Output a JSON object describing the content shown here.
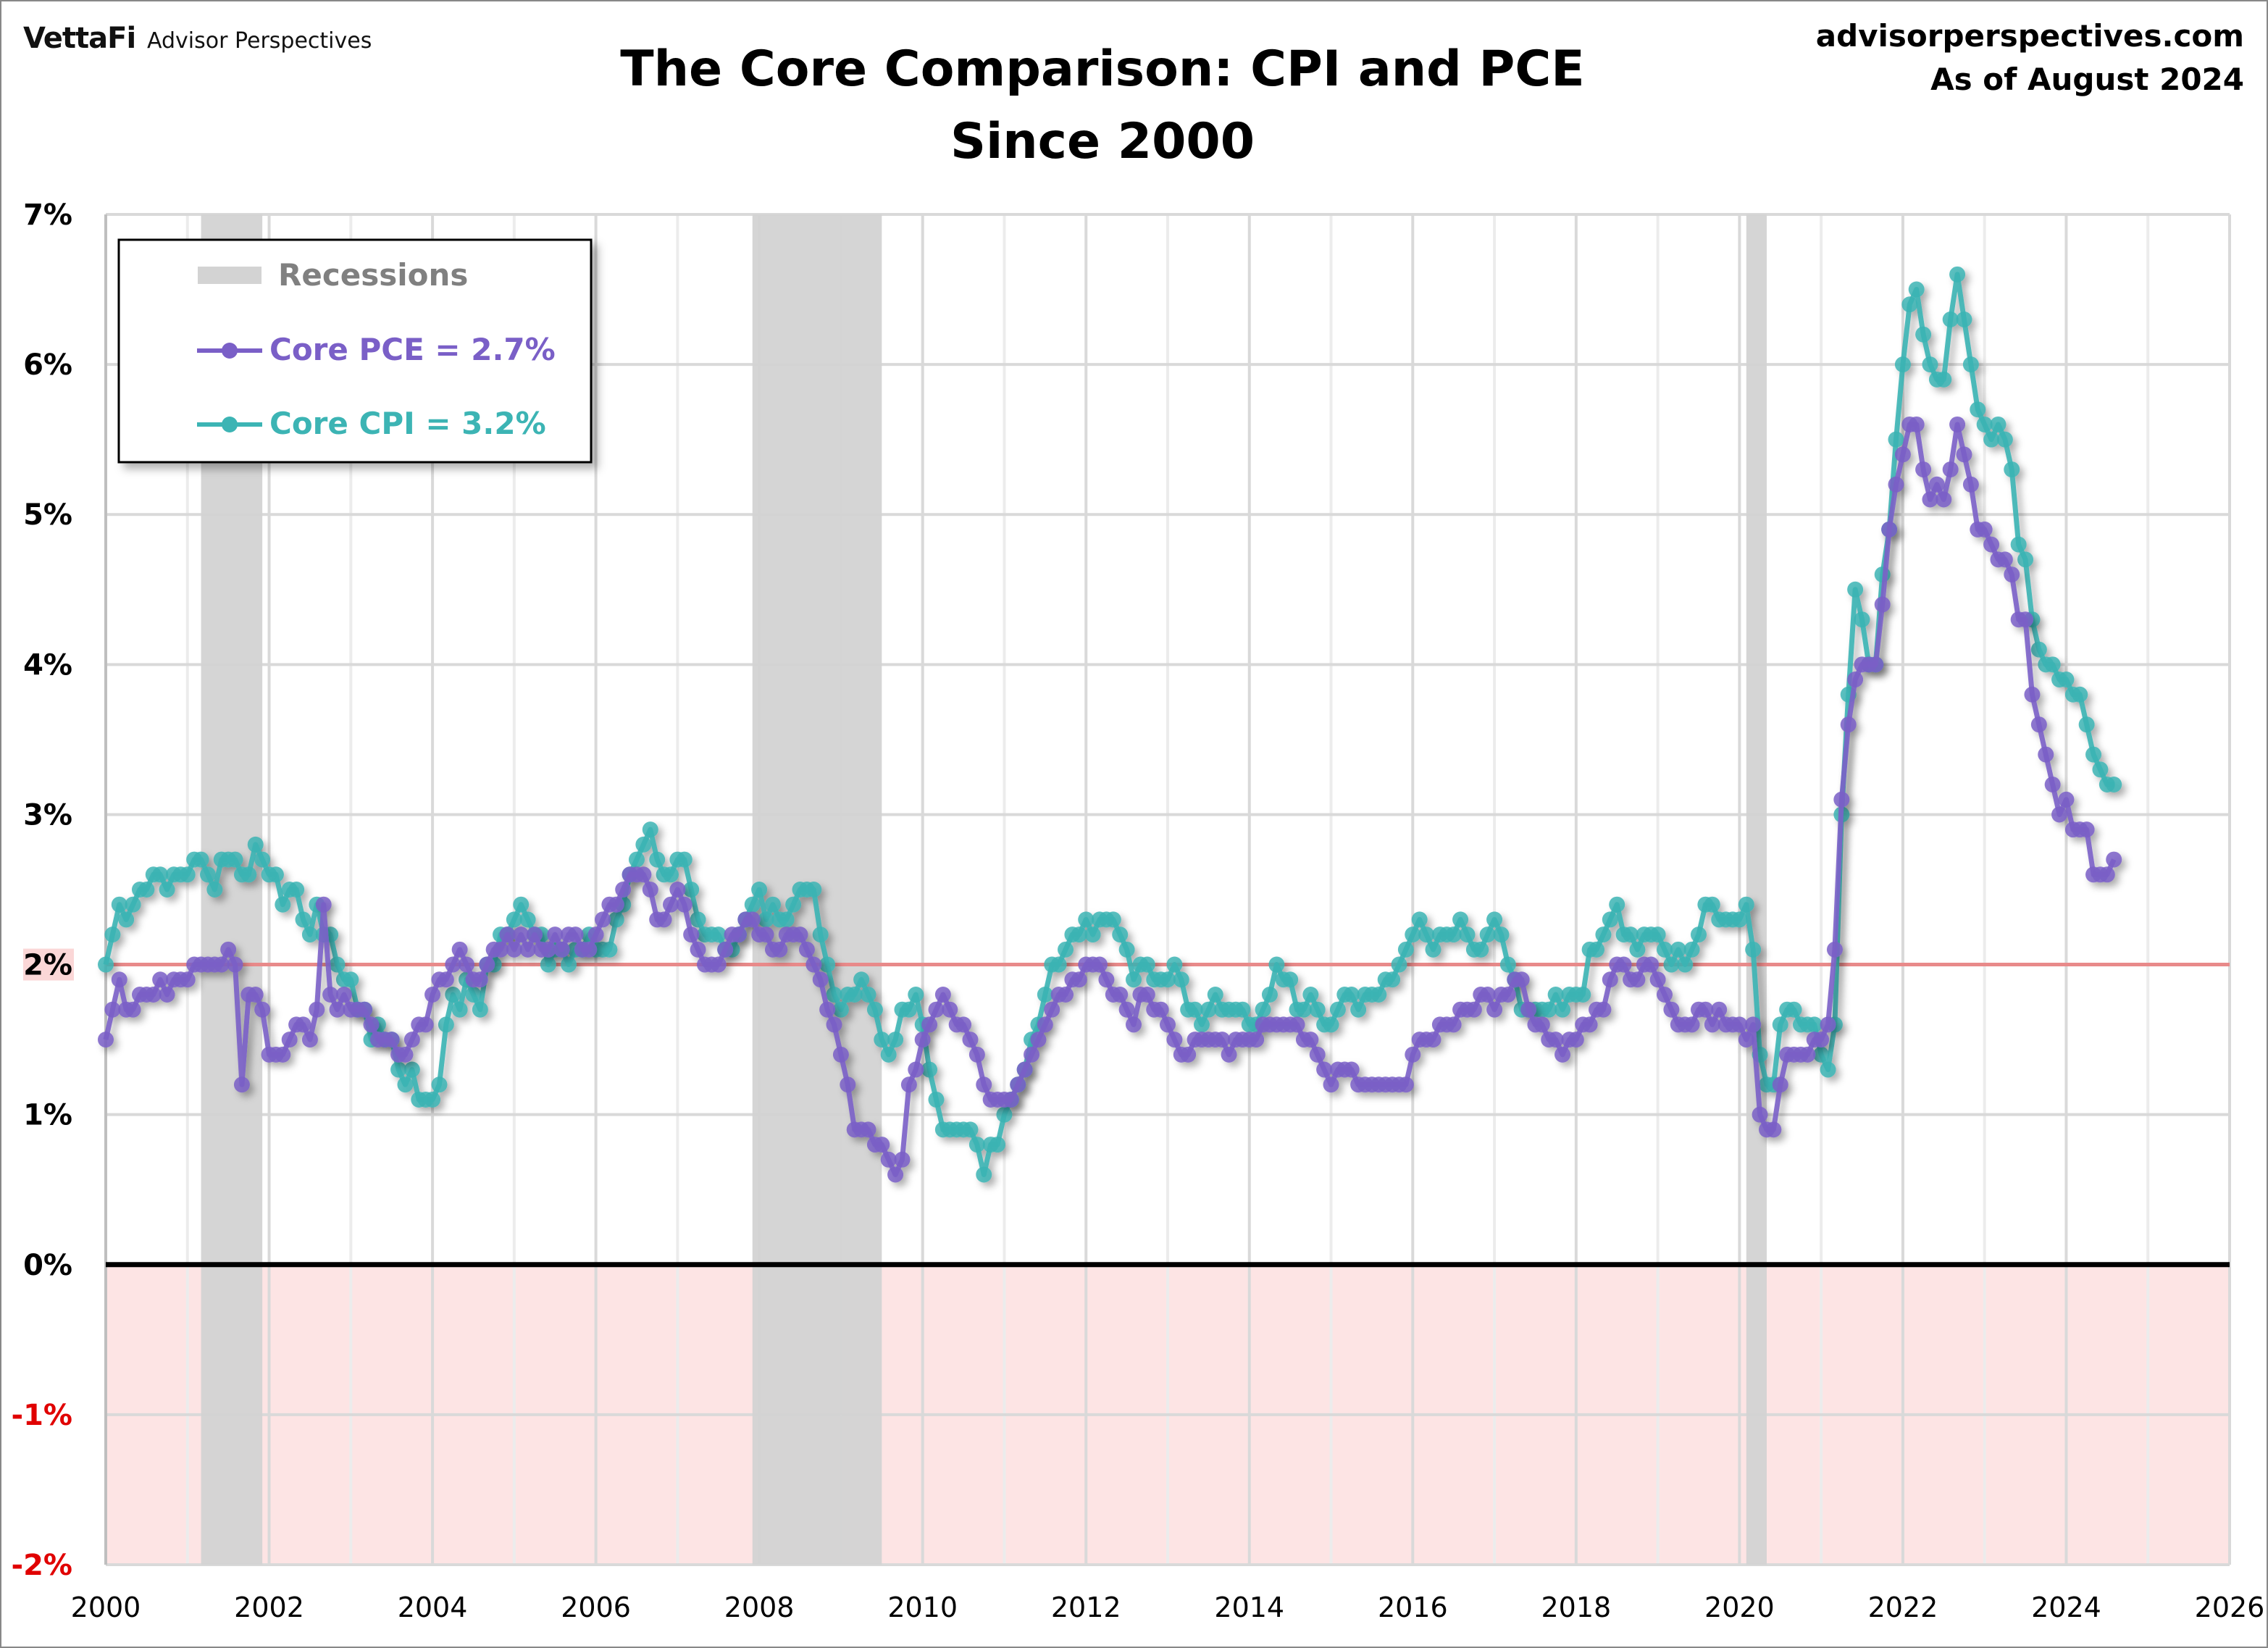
{
  "header": {
    "logo_text": "VettaFi",
    "brand_text": "Advisor Perspectives",
    "site": "advisorperspectives.com",
    "as_of": "As of August 2024"
  },
  "chart_data": {
    "type": "line",
    "title": "The Core Comparison: CPI and PCE",
    "subtitle": "Since 2000",
    "xlabel": "",
    "ylabel": "",
    "xlim": [
      2000,
      2026
    ],
    "ylim": [
      -2,
      7
    ],
    "x_ticks": [
      "2000",
      "2002",
      "2004",
      "2006",
      "2008",
      "2010",
      "2012",
      "2014",
      "2016",
      "2018",
      "2020",
      "2022",
      "2024",
      "2026"
    ],
    "y_ticks": [
      "7%",
      "6%",
      "5%",
      "4%",
      "3%",
      "2%",
      "1%",
      "0%",
      "-1%",
      "-2%"
    ],
    "y_tick_values": [
      7,
      6,
      5,
      4,
      3,
      2,
      1,
      0,
      -1,
      -2
    ],
    "grid": true,
    "legend_placement": "top-left",
    "reference_line": {
      "value": 2,
      "color": "#e88a8a"
    },
    "negative_shading_color": "#fde4e4",
    "recession_color": "#d3d3d3",
    "recessions": [
      {
        "start": "2001-03",
        "end": "2001-11"
      },
      {
        "start": "2007-12",
        "end": "2009-06"
      },
      {
        "start": "2020-02",
        "end": "2020-04"
      }
    ],
    "legend": {
      "recessions_label": "Recessions",
      "pce_label": "Core PCE = 2.7%",
      "cpi_label": "Core CPI =  3.2%"
    },
    "x_start": "2000-01",
    "frequency": "monthly",
    "series": [
      {
        "name": "Core PCE",
        "color": "#7a5fc7",
        "latest": "2.7%",
        "values": [
          1.5,
          1.7,
          1.9,
          1.7,
          1.7,
          1.8,
          1.8,
          1.8,
          1.9,
          1.8,
          1.9,
          1.9,
          1.9,
          2.0,
          2.0,
          2.0,
          2.0,
          2.0,
          2.1,
          2.0,
          1.2,
          1.8,
          1.8,
          1.7,
          1.4,
          1.4,
          1.4,
          1.5,
          1.6,
          1.6,
          1.5,
          1.7,
          2.4,
          1.8,
          1.7,
          1.8,
          1.7,
          1.7,
          1.7,
          1.6,
          1.5,
          1.5,
          1.5,
          1.4,
          1.4,
          1.5,
          1.6,
          1.6,
          1.8,
          1.9,
          1.9,
          2.0,
          2.1,
          2.0,
          1.9,
          1.9,
          2.0,
          2.1,
          2.1,
          2.2,
          2.1,
          2.2,
          2.1,
          2.2,
          2.1,
          2.1,
          2.2,
          2.1,
          2.2,
          2.2,
          2.1,
          2.1,
          2.2,
          2.3,
          2.4,
          2.4,
          2.5,
          2.6,
          2.6,
          2.6,
          2.5,
          2.3,
          2.3,
          2.4,
          2.5,
          2.4,
          2.2,
          2.1,
          2.0,
          2.0,
          2.0,
          2.1,
          2.2,
          2.2,
          2.3,
          2.3,
          2.2,
          2.2,
          2.1,
          2.1,
          2.2,
          2.2,
          2.2,
          2.1,
          2.0,
          1.9,
          1.7,
          1.6,
          1.4,
          1.2,
          0.9,
          0.9,
          0.9,
          0.8,
          0.8,
          0.7,
          0.6,
          0.7,
          1.2,
          1.3,
          1.5,
          1.6,
          1.7,
          1.8,
          1.7,
          1.6,
          1.6,
          1.5,
          1.4,
          1.2,
          1.1,
          1.1,
          1.1,
          1.1,
          1.2,
          1.3,
          1.4,
          1.5,
          1.6,
          1.7,
          1.8,
          1.8,
          1.9,
          1.9,
          2.0,
          2.0,
          2.0,
          1.9,
          1.8,
          1.8,
          1.7,
          1.6,
          1.8,
          1.8,
          1.7,
          1.7,
          1.6,
          1.5,
          1.4,
          1.4,
          1.5,
          1.5,
          1.5,
          1.5,
          1.5,
          1.4,
          1.5,
          1.5,
          1.5,
          1.5,
          1.6,
          1.6,
          1.6,
          1.6,
          1.6,
          1.6,
          1.5,
          1.5,
          1.4,
          1.3,
          1.2,
          1.3,
          1.3,
          1.3,
          1.2,
          1.2,
          1.2,
          1.2,
          1.2,
          1.2,
          1.2,
          1.2,
          1.4,
          1.5,
          1.5,
          1.5,
          1.6,
          1.6,
          1.6,
          1.7,
          1.7,
          1.7,
          1.8,
          1.8,
          1.7,
          1.8,
          1.8,
          1.9,
          1.9,
          1.7,
          1.6,
          1.6,
          1.5,
          1.5,
          1.4,
          1.5,
          1.5,
          1.6,
          1.6,
          1.7,
          1.7,
          1.9,
          2.0,
          2.0,
          1.9,
          1.9,
          2.0,
          2.0,
          1.9,
          1.8,
          1.7,
          1.6,
          1.6,
          1.6,
          1.7,
          1.7,
          1.6,
          1.7,
          1.6,
          1.6,
          1.6,
          1.5,
          1.6,
          1.0,
          0.9,
          0.9,
          1.2,
          1.4,
          1.4,
          1.4,
          1.4,
          1.5,
          1.5,
          1.6,
          2.1,
          3.1,
          3.6,
          3.9,
          4.0,
          4.0,
          4.0,
          4.4,
          4.9,
          5.2,
          5.4,
          5.6,
          5.6,
          5.3,
          5.1,
          5.2,
          5.1,
          5.3,
          5.6,
          5.4,
          5.2,
          4.9,
          4.9,
          4.8,
          4.7,
          4.7,
          4.6,
          4.3,
          4.3,
          3.8,
          3.6,
          3.4,
          3.2,
          3.0,
          3.1,
          2.9,
          2.9,
          2.9,
          2.6,
          2.6,
          2.6,
          2.7
        ]
      },
      {
        "name": "Core CPI",
        "color": "#3cb4b4",
        "latest": "3.2%",
        "values": [
          2.0,
          2.2,
          2.4,
          2.3,
          2.4,
          2.5,
          2.5,
          2.6,
          2.6,
          2.5,
          2.6,
          2.6,
          2.6,
          2.7,
          2.7,
          2.6,
          2.5,
          2.7,
          2.7,
          2.7,
          2.6,
          2.6,
          2.8,
          2.7,
          2.6,
          2.6,
          2.4,
          2.5,
          2.5,
          2.3,
          2.2,
          2.4,
          2.2,
          2.2,
          2.0,
          1.9,
          1.9,
          1.7,
          1.7,
          1.5,
          1.6,
          1.5,
          1.5,
          1.3,
          1.2,
          1.3,
          1.1,
          1.1,
          1.1,
          1.2,
          1.6,
          1.8,
          1.7,
          1.9,
          1.8,
          1.7,
          2.0,
          2.0,
          2.2,
          2.2,
          2.3,
          2.4,
          2.3,
          2.2,
          2.2,
          2.0,
          2.1,
          2.1,
          2.0,
          2.1,
          2.1,
          2.2,
          2.1,
          2.1,
          2.1,
          2.3,
          2.4,
          2.6,
          2.7,
          2.8,
          2.9,
          2.7,
          2.6,
          2.6,
          2.7,
          2.7,
          2.5,
          2.3,
          2.2,
          2.2,
          2.2,
          2.1,
          2.1,
          2.2,
          2.3,
          2.4,
          2.5,
          2.3,
          2.4,
          2.3,
          2.3,
          2.4,
          2.5,
          2.5,
          2.5,
          2.2,
          2.0,
          1.8,
          1.7,
          1.8,
          1.8,
          1.9,
          1.8,
          1.7,
          1.5,
          1.4,
          1.5,
          1.7,
          1.7,
          1.8,
          1.6,
          1.3,
          1.1,
          0.9,
          0.9,
          0.9,
          0.9,
          0.9,
          0.8,
          0.6,
          0.8,
          0.8,
          1.0,
          1.1,
          1.2,
          1.3,
          1.5,
          1.6,
          1.8,
          2.0,
          2.0,
          2.1,
          2.2,
          2.2,
          2.3,
          2.2,
          2.3,
          2.3,
          2.3,
          2.2,
          2.1,
          1.9,
          2.0,
          2.0,
          1.9,
          1.9,
          1.9,
          2.0,
          1.9,
          1.7,
          1.7,
          1.6,
          1.7,
          1.8,
          1.7,
          1.7,
          1.7,
          1.7,
          1.6,
          1.6,
          1.7,
          1.8,
          2.0,
          1.9,
          1.9,
          1.7,
          1.7,
          1.8,
          1.7,
          1.6,
          1.6,
          1.7,
          1.8,
          1.8,
          1.7,
          1.8,
          1.8,
          1.8,
          1.9,
          1.9,
          2.0,
          2.1,
          2.2,
          2.3,
          2.2,
          2.1,
          2.2,
          2.2,
          2.2,
          2.3,
          2.2,
          2.1,
          2.1,
          2.2,
          2.3,
          2.2,
          2.0,
          1.9,
          1.7,
          1.7,
          1.7,
          1.7,
          1.7,
          1.8,
          1.7,
          1.8,
          1.8,
          1.8,
          2.1,
          2.1,
          2.2,
          2.3,
          2.4,
          2.2,
          2.2,
          2.1,
          2.2,
          2.2,
          2.2,
          2.1,
          2.0,
          2.1,
          2.0,
          2.1,
          2.2,
          2.4,
          2.4,
          2.3,
          2.3,
          2.3,
          2.3,
          2.4,
          2.1,
          1.4,
          1.2,
          1.2,
          1.6,
          1.7,
          1.7,
          1.6,
          1.6,
          1.6,
          1.4,
          1.3,
          1.6,
          3.0,
          3.8,
          4.5,
          4.3,
          4.0,
          4.0,
          4.6,
          4.9,
          5.5,
          6.0,
          6.4,
          6.5,
          6.2,
          6.0,
          5.9,
          5.9,
          6.3,
          6.6,
          6.3,
          6.0,
          5.7,
          5.6,
          5.5,
          5.6,
          5.5,
          5.3,
          4.8,
          4.7,
          4.3,
          4.1,
          4.0,
          4.0,
          3.9,
          3.9,
          3.8,
          3.8,
          3.6,
          3.4,
          3.3,
          3.2,
          3.2
        ]
      }
    ]
  }
}
